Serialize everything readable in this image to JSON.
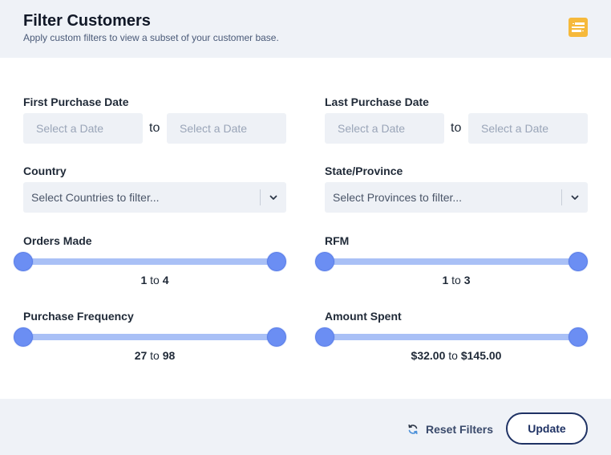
{
  "header": {
    "title": "Filter Customers",
    "subtitle": "Apply custom filters to view a subset of your customer base.",
    "icon": "filter-settings-icon",
    "accent": "#f6b93b"
  },
  "first_purchase": {
    "label": "First Purchase Date",
    "from_placeholder": "Select a Date",
    "to_word": "to",
    "to_placeholder": "Select a Date"
  },
  "last_purchase": {
    "label": "Last Purchase Date",
    "from_placeholder": "Select a Date",
    "to_word": "to",
    "to_placeholder": "Select a Date"
  },
  "country": {
    "label": "Country",
    "placeholder": "Select Countries to filter..."
  },
  "state": {
    "label": "State/Province",
    "placeholder": "Select Provinces to filter..."
  },
  "orders_made": {
    "label": "Orders Made",
    "min": "1",
    "to_word": "to",
    "max": "4"
  },
  "rfm": {
    "label": "RFM",
    "min": "1",
    "to_word": "to",
    "max": "3"
  },
  "purchase_frequency": {
    "label": "Purchase Frequency",
    "min": "27",
    "to_word": "to",
    "max": "98"
  },
  "amount_spent": {
    "label": "Amount Spent",
    "min": "$32.00",
    "to_word": "to",
    "max": "$145.00"
  },
  "footer": {
    "reset_label": "Reset Filters",
    "reset_icon": "refresh-icon",
    "update_label": "Update"
  },
  "colors": {
    "slider_track": "#a9c0f6",
    "slider_thumb": "#6b8ef3",
    "button_border": "#1f3264"
  }
}
